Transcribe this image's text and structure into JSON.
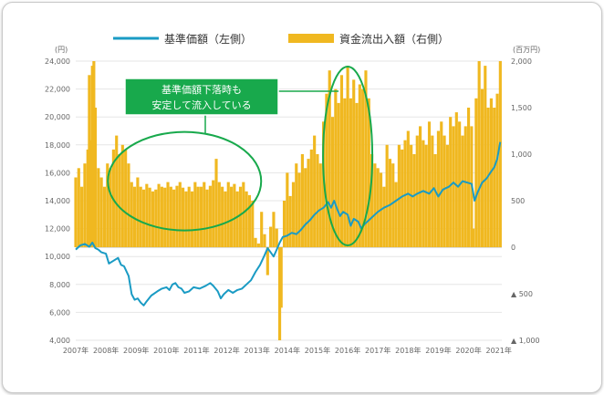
{
  "chart_data": {
    "type": "bar+line",
    "legend": {
      "line_label": "基準価額（左側）",
      "bar_label": "資金流出入額（右側）",
      "line_color": "#1a9bc4",
      "bar_color": "#f0b820",
      "placement": "top"
    },
    "left_axis": {
      "unit": "(円)",
      "ylim": [
        4000,
        24000
      ],
      "ticks": [
        "24,000",
        "22,000",
        "20,000",
        "18,000",
        "16,000",
        "14,000",
        "12,000",
        "10,000",
        "8,000",
        "6,000",
        "4,000"
      ],
      "tick_values": [
        24000,
        22000,
        20000,
        18000,
        16000,
        14000,
        12000,
        10000,
        8000,
        6000,
        4000
      ]
    },
    "right_axis": {
      "unit": "(百万円)",
      "ylim": [
        -1000,
        2000
      ],
      "ticks": [
        "2,000",
        "1,500",
        "1,000",
        "500",
        "0",
        "▲ 500",
        "▲ 1,000"
      ],
      "tick_values": [
        2000,
        1500,
        1000,
        500,
        0,
        -500,
        -1000
      ]
    },
    "x_axis": {
      "ticks": [
        "2007年",
        "2008年",
        "2009年",
        "2010年",
        "2011年",
        "2012年",
        "2013年",
        "2014年",
        "2015年",
        "2016年",
        "2017年",
        "2018年",
        "2019年",
        "2020年",
        "2021年"
      ],
      "tick_values": [
        2007,
        2008,
        2009,
        2010,
        2011,
        2012,
        2013,
        2014,
        2015,
        2016,
        2017,
        2018,
        2019,
        2020,
        2021
      ],
      "range": [
        2007,
        2021.1
      ]
    },
    "annotation": {
      "lines": [
        "基準価額下落時も",
        "安定して流入している"
      ],
      "box_color": "#18a94c"
    },
    "highlight_regions": [
      {
        "label": "2009-2012 period",
        "center": [
          2010.6,
          15400
        ]
      },
      {
        "label": "2016 period",
        "center": [
          2016.0,
          17200
        ]
      }
    ],
    "nav_series": {
      "name": "基準価額（左側）",
      "points": [
        [
          2007.0,
          10500
        ],
        [
          2007.15,
          10800
        ],
        [
          2007.3,
          10900
        ],
        [
          2007.45,
          10700
        ],
        [
          2007.55,
          11000
        ],
        [
          2007.65,
          10600
        ],
        [
          2007.75,
          10500
        ],
        [
          2007.85,
          10300
        ],
        [
          2008.0,
          10200
        ],
        [
          2008.1,
          9500
        ],
        [
          2008.25,
          9700
        ],
        [
          2008.4,
          9900
        ],
        [
          2008.5,
          9400
        ],
        [
          2008.6,
          9300
        ],
        [
          2008.75,
          8600
        ],
        [
          2008.85,
          7300
        ],
        [
          2008.95,
          6900
        ],
        [
          2009.05,
          7000
        ],
        [
          2009.15,
          6700
        ],
        [
          2009.25,
          6500
        ],
        [
          2009.35,
          6800
        ],
        [
          2009.5,
          7200
        ],
        [
          2009.7,
          7500
        ],
        [
          2009.85,
          7700
        ],
        [
          2010.0,
          7800
        ],
        [
          2010.1,
          7600
        ],
        [
          2010.2,
          8000
        ],
        [
          2010.3,
          8100
        ],
        [
          2010.4,
          7800
        ],
        [
          2010.5,
          7700
        ],
        [
          2010.6,
          7400
        ],
        [
          2010.75,
          7500
        ],
        [
          2010.9,
          7800
        ],
        [
          2011.1,
          7700
        ],
        [
          2011.3,
          7900
        ],
        [
          2011.45,
          8100
        ],
        [
          2011.55,
          7900
        ],
        [
          2011.7,
          7500
        ],
        [
          2011.8,
          7000
        ],
        [
          2011.9,
          7300
        ],
        [
          2012.05,
          7600
        ],
        [
          2012.2,
          7400
        ],
        [
          2012.35,
          7600
        ],
        [
          2012.5,
          7700
        ],
        [
          2012.65,
          8000
        ],
        [
          2012.8,
          8300
        ],
        [
          2012.95,
          8900
        ],
        [
          2013.1,
          9400
        ],
        [
          2013.25,
          10100
        ],
        [
          2013.35,
          10600
        ],
        [
          2013.45,
          10300
        ],
        [
          2013.55,
          10000
        ],
        [
          2013.65,
          10500
        ],
        [
          2013.75,
          11000
        ],
        [
          2013.85,
          11400
        ],
        [
          2014.0,
          11500
        ],
        [
          2014.15,
          11700
        ],
        [
          2014.3,
          11600
        ],
        [
          2014.45,
          11900
        ],
        [
          2014.6,
          12300
        ],
        [
          2014.75,
          12600
        ],
        [
          2014.9,
          13000
        ],
        [
          2015.05,
          13300
        ],
        [
          2015.2,
          13500
        ],
        [
          2015.35,
          13900
        ],
        [
          2015.45,
          13500
        ],
        [
          2015.55,
          14000
        ],
        [
          2015.65,
          13400
        ],
        [
          2015.75,
          12900
        ],
        [
          2015.85,
          13200
        ],
        [
          2016.0,
          13000
        ],
        [
          2016.1,
          12200
        ],
        [
          2016.2,
          12700
        ],
        [
          2016.35,
          12500
        ],
        [
          2016.45,
          12000
        ],
        [
          2016.55,
          12300
        ],
        [
          2016.7,
          12600
        ],
        [
          2016.85,
          12900
        ],
        [
          2017.0,
          13200
        ],
        [
          2017.2,
          13500
        ],
        [
          2017.4,
          13700
        ],
        [
          2017.6,
          14000
        ],
        [
          2017.8,
          14300
        ],
        [
          2018.0,
          14500
        ],
        [
          2018.15,
          14300
        ],
        [
          2018.3,
          14500
        ],
        [
          2018.5,
          14700
        ],
        [
          2018.7,
          14500
        ],
        [
          2018.85,
          14900
        ],
        [
          2019.0,
          14300
        ],
        [
          2019.15,
          14800
        ],
        [
          2019.35,
          15000
        ],
        [
          2019.5,
          15300
        ],
        [
          2019.65,
          15000
        ],
        [
          2019.8,
          15400
        ],
        [
          2019.95,
          15300
        ],
        [
          2020.1,
          15200
        ],
        [
          2020.2,
          14000
        ],
        [
          2020.3,
          14600
        ],
        [
          2020.45,
          15300
        ],
        [
          2020.6,
          15600
        ],
        [
          2020.75,
          16100
        ],
        [
          2020.85,
          16400
        ],
        [
          2020.95,
          17000
        ],
        [
          2021.05,
          18200
        ]
      ]
    },
    "flow_series": {
      "name": "資金流出入額（右側）",
      "points": [
        [
          2007.0,
          750
        ],
        [
          2007.1,
          850
        ],
        [
          2007.2,
          650
        ],
        [
          2007.3,
          900
        ],
        [
          2007.4,
          1050
        ],
        [
          2007.45,
          1850
        ],
        [
          2007.5,
          1150
        ],
        [
          2007.55,
          1950
        ],
        [
          2007.6,
          2000
        ],
        [
          2007.65,
          1500
        ],
        [
          2007.75,
          850
        ],
        [
          2007.85,
          750
        ],
        [
          2007.95,
          650
        ],
        [
          2008.05,
          900
        ],
        [
          2008.15,
          850
        ],
        [
          2008.25,
          1050
        ],
        [
          2008.35,
          1200
        ],
        [
          2008.45,
          1000
        ],
        [
          2008.55,
          1100
        ],
        [
          2008.65,
          1050
        ],
        [
          2008.75,
          900
        ],
        [
          2008.85,
          700
        ],
        [
          2008.95,
          650
        ],
        [
          2009.05,
          750
        ],
        [
          2009.15,
          650
        ],
        [
          2009.25,
          620
        ],
        [
          2009.35,
          680
        ],
        [
          2009.45,
          640
        ],
        [
          2009.55,
          600
        ],
        [
          2009.65,
          620
        ],
        [
          2009.75,
          680
        ],
        [
          2009.85,
          650
        ],
        [
          2009.95,
          640
        ],
        [
          2010.05,
          700
        ],
        [
          2010.15,
          650
        ],
        [
          2010.25,
          620
        ],
        [
          2010.35,
          660
        ],
        [
          2010.45,
          700
        ],
        [
          2010.55,
          640
        ],
        [
          2010.65,
          600
        ],
        [
          2010.75,
          650
        ],
        [
          2010.85,
          600
        ],
        [
          2010.95,
          700
        ],
        [
          2011.05,
          650
        ],
        [
          2011.15,
          650
        ],
        [
          2011.25,
          700
        ],
        [
          2011.35,
          620
        ],
        [
          2011.45,
          660
        ],
        [
          2011.55,
          720
        ],
        [
          2011.65,
          950
        ],
        [
          2011.75,
          700
        ],
        [
          2011.85,
          650
        ],
        [
          2011.95,
          600
        ],
        [
          2012.05,
          700
        ],
        [
          2012.15,
          650
        ],
        [
          2012.25,
          680
        ],
        [
          2012.35,
          600
        ],
        [
          2012.45,
          650
        ],
        [
          2012.55,
          700
        ],
        [
          2012.65,
          600
        ],
        [
          2012.75,
          560
        ],
        [
          2012.85,
          500
        ],
        [
          2012.95,
          100
        ],
        [
          2013.05,
          40
        ],
        [
          2013.15,
          380
        ],
        [
          2013.25,
          140
        ],
        [
          2013.35,
          -300
        ],
        [
          2013.45,
          220
        ],
        [
          2013.55,
          380
        ],
        [
          2013.65,
          200
        ],
        [
          2013.75,
          -1000
        ],
        [
          2013.8,
          -650
        ],
        [
          2013.9,
          500
        ],
        [
          2014.0,
          800
        ],
        [
          2014.1,
          550
        ],
        [
          2014.2,
          700
        ],
        [
          2014.3,
          900
        ],
        [
          2014.4,
          800
        ],
        [
          2014.5,
          1000
        ],
        [
          2014.6,
          850
        ],
        [
          2014.7,
          950
        ],
        [
          2014.8,
          1050
        ],
        [
          2014.9,
          1200
        ],
        [
          2015.0,
          1000
        ],
        [
          2015.1,
          900
        ],
        [
          2015.2,
          1350
        ],
        [
          2015.3,
          1650
        ],
        [
          2015.4,
          1900
        ],
        [
          2015.5,
          1400
        ],
        [
          2015.6,
          1700
        ],
        [
          2015.7,
          1550
        ],
        [
          2015.8,
          1850
        ],
        [
          2015.9,
          1600
        ],
        [
          2016.0,
          1950
        ],
        [
          2016.1,
          1600
        ],
        [
          2016.2,
          1800
        ],
        [
          2016.3,
          1550
        ],
        [
          2016.4,
          1750
        ],
        [
          2016.5,
          1700
        ],
        [
          2016.6,
          1900
        ],
        [
          2016.7,
          1600
        ],
        [
          2016.8,
          1000
        ],
        [
          2016.9,
          900
        ],
        [
          2017.0,
          850
        ],
        [
          2017.1,
          800
        ],
        [
          2017.2,
          650
        ],
        [
          2017.3,
          1100
        ],
        [
          2017.4,
          950
        ],
        [
          2017.5,
          900
        ],
        [
          2017.6,
          700
        ],
        [
          2017.7,
          1100
        ],
        [
          2017.8,
          1050
        ],
        [
          2017.9,
          1150
        ],
        [
          2018.0,
          1250
        ],
        [
          2018.1,
          1100
        ],
        [
          2018.2,
          1000
        ],
        [
          2018.3,
          1200
        ],
        [
          2018.4,
          1300
        ],
        [
          2018.5,
          1150
        ],
        [
          2018.6,
          1100
        ],
        [
          2018.7,
          1350
        ],
        [
          2018.8,
          1200
        ],
        [
          2018.9,
          1000
        ],
        [
          2019.0,
          1250
        ],
        [
          2019.1,
          1350
        ],
        [
          2019.2,
          1200
        ],
        [
          2019.3,
          1100
        ],
        [
          2019.4,
          1400
        ],
        [
          2019.5,
          1300
        ],
        [
          2019.6,
          1450
        ],
        [
          2019.7,
          1350
        ],
        [
          2019.8,
          1200
        ],
        [
          2019.9,
          1300
        ],
        [
          2020.0,
          1500
        ],
        [
          2020.1,
          1300
        ],
        [
          2020.15,
          200
        ],
        [
          2020.25,
          1600
        ],
        [
          2020.35,
          2000
        ],
        [
          2020.45,
          1700
        ],
        [
          2020.55,
          1950
        ],
        [
          2020.65,
          1500
        ],
        [
          2020.75,
          1600
        ],
        [
          2020.85,
          1500
        ],
        [
          2020.95,
          1650
        ],
        [
          2021.05,
          2000
        ]
      ]
    }
  }
}
